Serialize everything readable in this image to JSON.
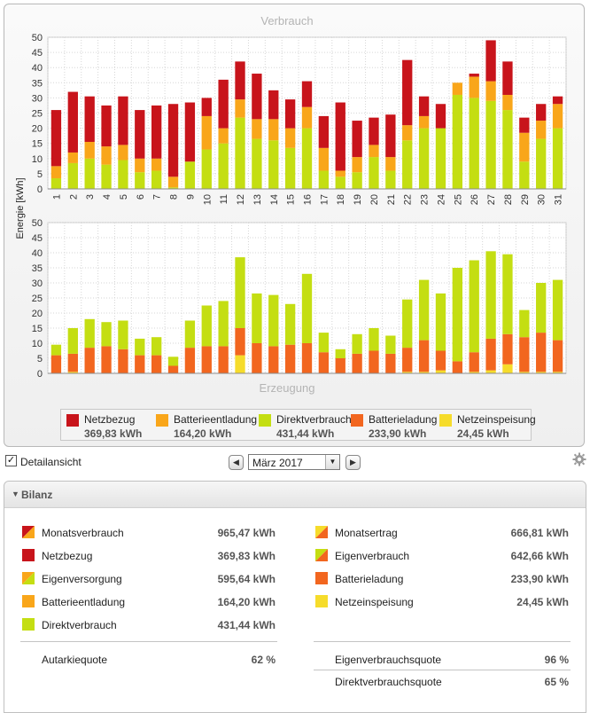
{
  "colors": {
    "netzbezug": "#c8141b",
    "batterieentladung": "#f9a61a",
    "direktverbrauch": "#c4de12",
    "batterieladung": "#f2661f",
    "netzeinspeisung": "#f6dc2b"
  },
  "chart_data": [
    {
      "type": "bar",
      "stacked": true,
      "title": "Verbrauch",
      "ylabel": "Energie [kWh]",
      "ylim": [
        0,
        50
      ],
      "yticks": [
        0,
        5,
        10,
        15,
        20,
        25,
        30,
        35,
        40,
        45,
        50
      ],
      "grid": true,
      "categories": [
        "1",
        "2",
        "3",
        "4",
        "5",
        "6",
        "7",
        "8",
        "9",
        "10",
        "11",
        "12",
        "13",
        "14",
        "15",
        "16",
        "17",
        "18",
        "19",
        "20",
        "21",
        "22",
        "23",
        "24",
        "25",
        "26",
        "27",
        "28",
        "29",
        "30",
        "31"
      ],
      "series": [
        {
          "name": "Direktverbrauch",
          "color": "#c4de12",
          "values": [
            3.5,
            8.5,
            10,
            8,
            9.5,
            5.5,
            6,
            0.5,
            9,
            13,
            15,
            23.5,
            16.5,
            16,
            13.5,
            20,
            6,
            4,
            5.5,
            10.5,
            6,
            16,
            20,
            20,
            31,
            30,
            29,
            26,
            9,
            16.5,
            20
          ]
        },
        {
          "name": "Batterieentladung",
          "color": "#f9a61a",
          "values": [
            4,
            3.5,
            5.5,
            6,
            5,
            4.5,
            4,
            3.5,
            0,
            11,
            5,
            6,
            6.5,
            7,
            6.5,
            7,
            7.5,
            2,
            5,
            4,
            4.5,
            5,
            4,
            0,
            4,
            7,
            6.5,
            5,
            9.5,
            6,
            8
          ]
        },
        {
          "name": "Netzbezug",
          "color": "#c8141b",
          "values": [
            18.5,
            20,
            15,
            13.5,
            16,
            16,
            17.5,
            24,
            19.5,
            6,
            16,
            12.5,
            15,
            9.5,
            9.5,
            8.5,
            10.5,
            22.5,
            12,
            9,
            14,
            21.5,
            6.5,
            8,
            0,
            1,
            13.5,
            11,
            5,
            5.5,
            2.5
          ]
        }
      ]
    },
    {
      "type": "bar",
      "stacked": true,
      "title": "Erzeugung",
      "ylabel": "Energie [kWh]",
      "ylim": [
        0,
        50
      ],
      "yticks": [
        0,
        5,
        10,
        15,
        20,
        25,
        30,
        35,
        40,
        45,
        50
      ],
      "grid": true,
      "categories": [
        "1",
        "2",
        "3",
        "4",
        "5",
        "6",
        "7",
        "8",
        "9",
        "10",
        "11",
        "12",
        "13",
        "14",
        "15",
        "16",
        "17",
        "18",
        "19",
        "20",
        "21",
        "22",
        "23",
        "24",
        "25",
        "26",
        "27",
        "28",
        "29",
        "30",
        "31"
      ],
      "series": [
        {
          "name": "Netzeinspeisung",
          "color": "#f6dc2b",
          "values": [
            0,
            0.5,
            0,
            0,
            0,
            0,
            0,
            0,
            0,
            0,
            0,
            6,
            0,
            0,
            0,
            0,
            0,
            0,
            0,
            0,
            0,
            0.5,
            0.5,
            1,
            0,
            0.5,
            1,
            3,
            0.5,
            0.5,
            0.5
          ]
        },
        {
          "name": "Batterieladung",
          "color": "#f2661f",
          "values": [
            6,
            6,
            8.5,
            9,
            8,
            6,
            6,
            2.5,
            8.5,
            9,
            9,
            9,
            10,
            9,
            9.5,
            10,
            7,
            5,
            6.5,
            7.5,
            6.5,
            8,
            10.5,
            6.5,
            4,
            6.5,
            10.5,
            10,
            11.5,
            13,
            10.5
          ]
        },
        {
          "name": "Direktverbrauch",
          "color": "#c4de12",
          "values": [
            3.5,
            8.5,
            9.5,
            8,
            9.5,
            5.5,
            6,
            3,
            9,
            13.5,
            15,
            23.5,
            16.5,
            17,
            13.5,
            23,
            6.5,
            3,
            6.5,
            7.5,
            6,
            16,
            20,
            19,
            31,
            30.5,
            29,
            26.5,
            9,
            16.5,
            20
          ]
        }
      ]
    }
  ],
  "legend": [
    {
      "label": "Netzbezug",
      "value": "369,83 kWh",
      "color": "#c8141b"
    },
    {
      "label": "Batterieentladung",
      "value": "164,20 kWh",
      "color": "#f9a61a"
    },
    {
      "label": "Direktverbrauch",
      "value": "431,44 kWh",
      "color": "#c4de12"
    },
    {
      "label": "Batterieladung",
      "value": "233,90 kWh",
      "color": "#f2661f"
    },
    {
      "label": "Netzeinspeisung",
      "value": "24,45 kWh",
      "color": "#f6dc2b"
    }
  ],
  "controls": {
    "detail_label": "Detailansicht",
    "detail_checked": true,
    "month": "März 2017"
  },
  "bilanz": {
    "title": "Bilanz",
    "left": [
      {
        "label": "Monatsverbrauch",
        "value": "965,47 kWh",
        "icon": "split-red-orange-icon"
      },
      {
        "label": "Netzbezug",
        "value": "369,83 kWh",
        "icon": "red-square-icon"
      },
      {
        "label": "Eigenversorgung",
        "value": "595,64 kWh",
        "icon": "split-green-orange-icon"
      },
      {
        "label": "Batterieentladung",
        "value": "164,20 kWh",
        "icon": "orange-square-icon"
      },
      {
        "label": "Direktverbrauch",
        "value": "431,44 kWh",
        "icon": "green-square-icon"
      }
    ],
    "right": [
      {
        "label": "Monatsertrag",
        "value": "666,81 kWh",
        "icon": "split-yellow-orange-icon"
      },
      {
        "label": "Eigenverbrauch",
        "value": "642,66 kWh",
        "icon": "split-green-orange-icon"
      },
      {
        "label": "Batterieladung",
        "value": "233,90 kWh",
        "icon": "dark-orange-square-icon"
      },
      {
        "label": "Netzeinspeisung",
        "value": "24,45 kWh",
        "icon": "yellow-square-icon"
      }
    ],
    "autarkie": {
      "label": "Autarkiequote",
      "value": "62 %"
    },
    "eigenverbrauchsquote": {
      "label": "Eigenverbrauchsquote",
      "value": "96 %"
    },
    "direktverbrauchsquote": {
      "label": "Direktverbrauchsquote",
      "value": "65 %"
    }
  }
}
